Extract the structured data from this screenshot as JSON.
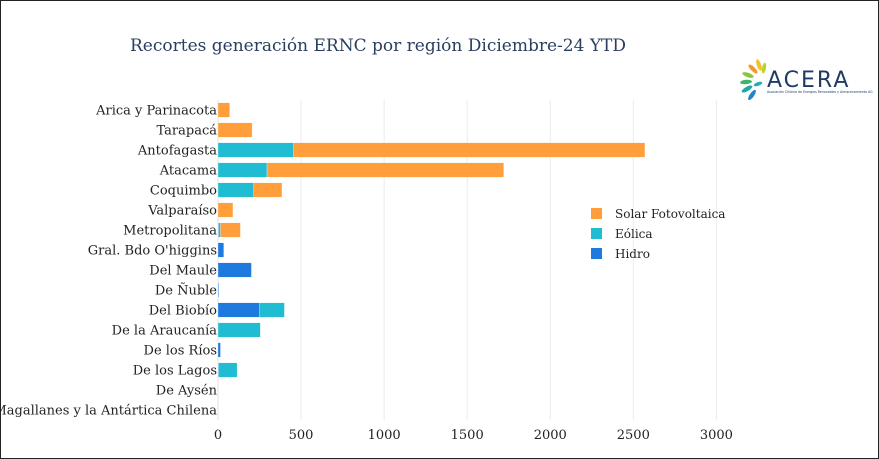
{
  "logo": {
    "text": "ACERA",
    "subtitle": "Asociación Chilena de Energías Renovables y Almacenamiento AG"
  },
  "chart_data": {
    "type": "bar",
    "orientation": "horizontal",
    "barmode": "stack",
    "title": "Recortes generación ERNC por región Diciembre-24 YTD",
    "xlabel": "",
    "ylabel": "",
    "xlim": [
      0,
      3100
    ],
    "xticks": [
      0,
      500,
      1000,
      1500,
      2000,
      2500,
      3000
    ],
    "grid": true,
    "legend_position": "right",
    "categories": [
      "Arica y Parinacota",
      "Tarapacá",
      "Antofagasta",
      "Atacama",
      "Coquimbo",
      "Valparaíso",
      "Metropolitana",
      "Gral. Bdo O'higgins",
      "Del Maule",
      "De Ñuble",
      "Del Biobío",
      "De la Araucanía",
      "De los Ríos",
      "De los Lagos",
      "De Aysén",
      "Magallanes y la Antártica Chilena"
    ],
    "series": [
      {
        "name": "Hidro",
        "color": "#1f7ae0",
        "values": [
          0,
          0,
          0,
          0,
          0,
          0,
          5,
          35,
          200,
          5,
          250,
          0,
          15,
          5,
          0,
          0
        ]
      },
      {
        "name": "Eólica",
        "color": "#1fbcd2",
        "values": [
          0,
          0,
          455,
          295,
          215,
          0,
          10,
          0,
          0,
          0,
          150,
          255,
          0,
          110,
          0,
          0
        ]
      },
      {
        "name": "Solar Fotovoltaica",
        "color": "#ff9e3a",
        "values": [
          70,
          205,
          2115,
          1425,
          170,
          90,
          120,
          0,
          5,
          0,
          0,
          0,
          0,
          0,
          0,
          0
        ]
      }
    ],
    "legend_order": [
      "Solar Fotovoltaica",
      "Eólica",
      "Hidro"
    ]
  }
}
